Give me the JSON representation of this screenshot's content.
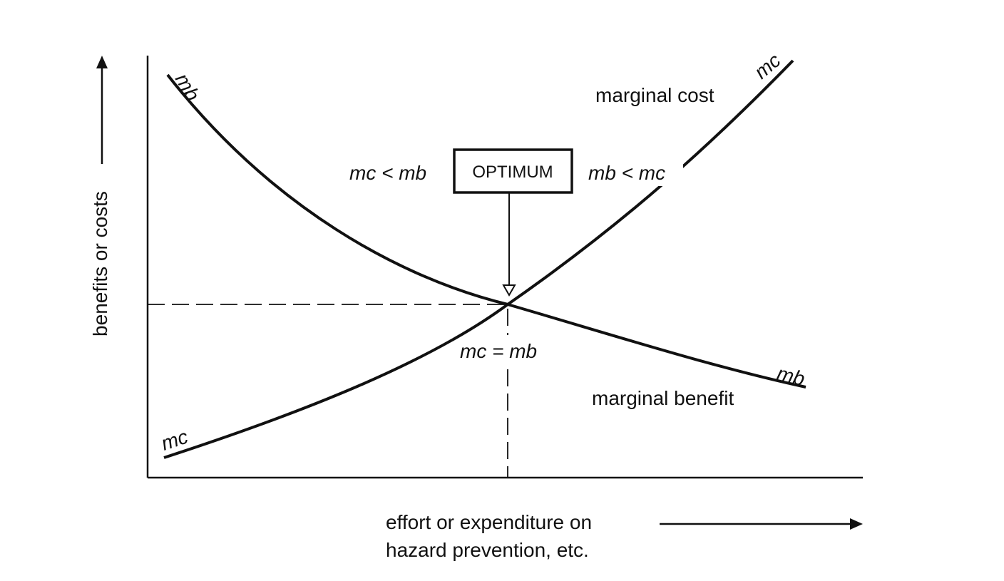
{
  "y_axis_label": "benefits or costs",
  "x_axis_label": [
    "effort or expenditure on",
    "hazard prevention, etc."
  ],
  "curves": [
    {
      "name": "marginal benefit",
      "label_start": "mb",
      "label_end": "mb"
    },
    {
      "name": "marginal cost",
      "label_start": "mc",
      "label_end": "mc"
    }
  ],
  "annotations": {
    "left": "mc < mb",
    "right": "mb < mc",
    "box": "OPTIMUM",
    "equal": "mc = mb"
  }
}
